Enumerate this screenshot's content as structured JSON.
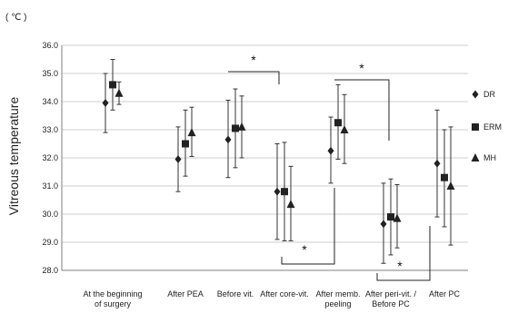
{
  "chart_data": {
    "type": "scatter",
    "unit_label": "( ℃ )",
    "ylabel": "Vitreous temperature",
    "ylim": [
      28.0,
      36.0
    ],
    "yticks": [
      "28.0",
      "29.0",
      "30.0",
      "31.0",
      "32.0",
      "33.0",
      "34.0",
      "35.0",
      "36.0"
    ],
    "categories": [
      [
        "At the beginning",
        "of surgery"
      ],
      [
        "After PEA"
      ],
      [
        "Before vit."
      ],
      [
        "After core-vit."
      ],
      [
        "After memb.",
        "peeling"
      ],
      [
        "After peri-vit. /",
        "Before PC"
      ],
      [
        "After PC"
      ]
    ],
    "series": [
      {
        "name": "DR",
        "marker": "diamond",
        "mean": [
          33.95,
          31.95,
          32.65,
          30.8,
          32.25,
          29.65,
          31.8
        ],
        "low": [
          32.9,
          30.8,
          31.3,
          29.1,
          31.1,
          28.25,
          29.9
        ],
        "high": [
          35.0,
          33.1,
          34.05,
          32.5,
          33.45,
          31.1,
          33.7
        ]
      },
      {
        "name": "ERM",
        "marker": "square",
        "mean": [
          34.6,
          32.5,
          33.05,
          30.8,
          33.25,
          29.9,
          31.3
        ],
        "low": [
          33.7,
          31.35,
          31.65,
          29.05,
          31.95,
          28.55,
          29.55
        ],
        "high": [
          35.5,
          33.7,
          34.45,
          32.55,
          34.6,
          31.25,
          33.0
        ]
      },
      {
        "name": "MH",
        "marker": "triangle",
        "mean": [
          34.3,
          32.9,
          33.1,
          30.35,
          33.0,
          29.85,
          31.0
        ],
        "low": [
          33.9,
          32.05,
          32.0,
          29.05,
          31.8,
          28.8,
          28.9
        ],
        "high": [
          34.7,
          33.8,
          34.2,
          31.7,
          34.25,
          31.05,
          33.1
        ]
      }
    ],
    "significance": [
      {
        "label": "*",
        "from": 2,
        "to": 3,
        "side": "top"
      },
      {
        "label": "*",
        "from": 4,
        "to": 5,
        "side": "top"
      },
      {
        "label": "*",
        "from": 3,
        "to": 4,
        "side": "bottom"
      },
      {
        "label": "*",
        "from": 5,
        "to": 6,
        "side": "bottom"
      }
    ],
    "grid": true,
    "legend_position": "right",
    "colors": {
      "marker": "#222222",
      "grid": "#cfcfcf",
      "axis": "#7f7f7f"
    }
  }
}
